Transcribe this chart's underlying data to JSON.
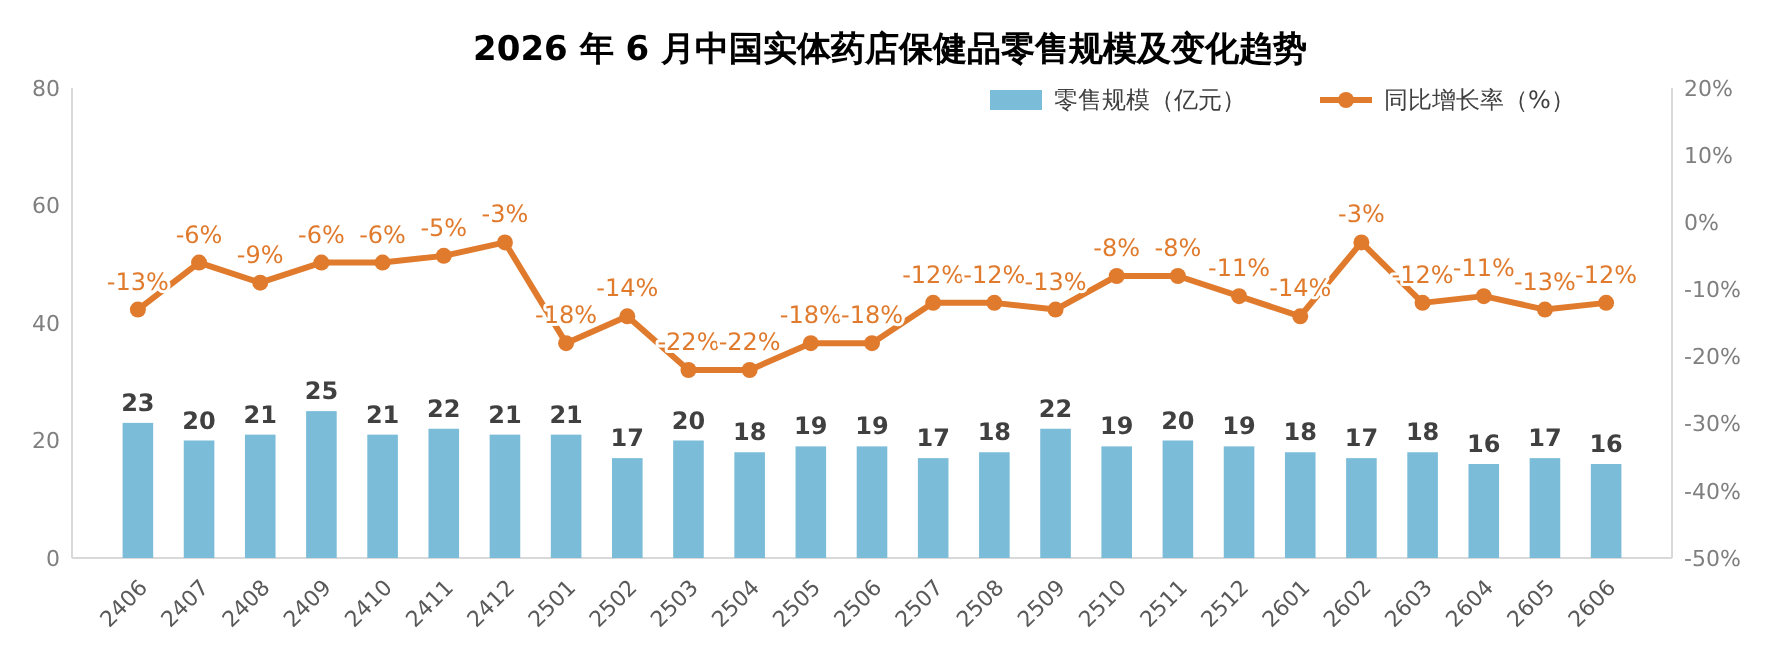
{
  "chart_data": {
    "type": "bar",
    "title": "2026 年 6 月中国实体药店保健品零售规模及变化趋势",
    "categories": [
      "2406",
      "2407",
      "2408",
      "2409",
      "2410",
      "2411",
      "2412",
      "2501",
      "2502",
      "2503",
      "2504",
      "2505",
      "2506",
      "2507",
      "2508",
      "2509",
      "2510",
      "2511",
      "2512",
      "2601",
      "2602",
      "2603",
      "2604",
      "2605",
      "2606"
    ],
    "series": [
      {
        "name": "零售规模（亿元）",
        "color": "#7bbcd9",
        "values": [
          23,
          20,
          21,
          25,
          21,
          22,
          21,
          21,
          17,
          20,
          18,
          19,
          19,
          17,
          18,
          22,
          19,
          20,
          19,
          18,
          17,
          18,
          16,
          17,
          16
        ]
      },
      {
        "name": "同比增长率（%）",
        "type": "line",
        "axis": "y2",
        "color": "#e07b2e",
        "values": [
          -13,
          -6,
          -9,
          -6,
          -6,
          -5,
          -3,
          -18,
          -14,
          -22,
          -22,
          -18,
          -18,
          -12,
          -12,
          -13,
          -8,
          -8,
          -11,
          -14,
          -3,
          -12,
          -11,
          -13,
          -12
        ],
        "value_labels": [
          "-13%",
          "-6%",
          "-9%",
          "-6%",
          "-6%",
          "-5%",
          "-3%",
          "-18%",
          "-14%",
          "-22%",
          "-22%",
          "-18%",
          "-18%",
          "-12%",
          "-12%",
          "-13%",
          "-8%",
          "-8%",
          "-11%",
          "-14%",
          "-3%",
          "-12%",
          "-11%",
          "-13%",
          "-12%"
        ]
      }
    ],
    "ylim": [
      0,
      80
    ],
    "yticks": [
      0,
      20,
      40,
      60,
      80
    ],
    "y2lim": [
      -50,
      20
    ],
    "y2ticks": [
      {
        "value": -50,
        "label": "-50%"
      },
      {
        "value": -40,
        "label": "-40%"
      },
      {
        "value": -30,
        "label": "-30%"
      },
      {
        "value": -20,
        "label": "-20%"
      },
      {
        "value": -10,
        "label": "-10%"
      },
      {
        "value": 0,
        "label": "0%"
      },
      {
        "value": 10,
        "label": "10%"
      },
      {
        "value": 20,
        "label": "20%"
      }
    ],
    "data_labels": true,
    "grid": false,
    "legend": "top",
    "marker": "circle",
    "line_style": "solid"
  }
}
